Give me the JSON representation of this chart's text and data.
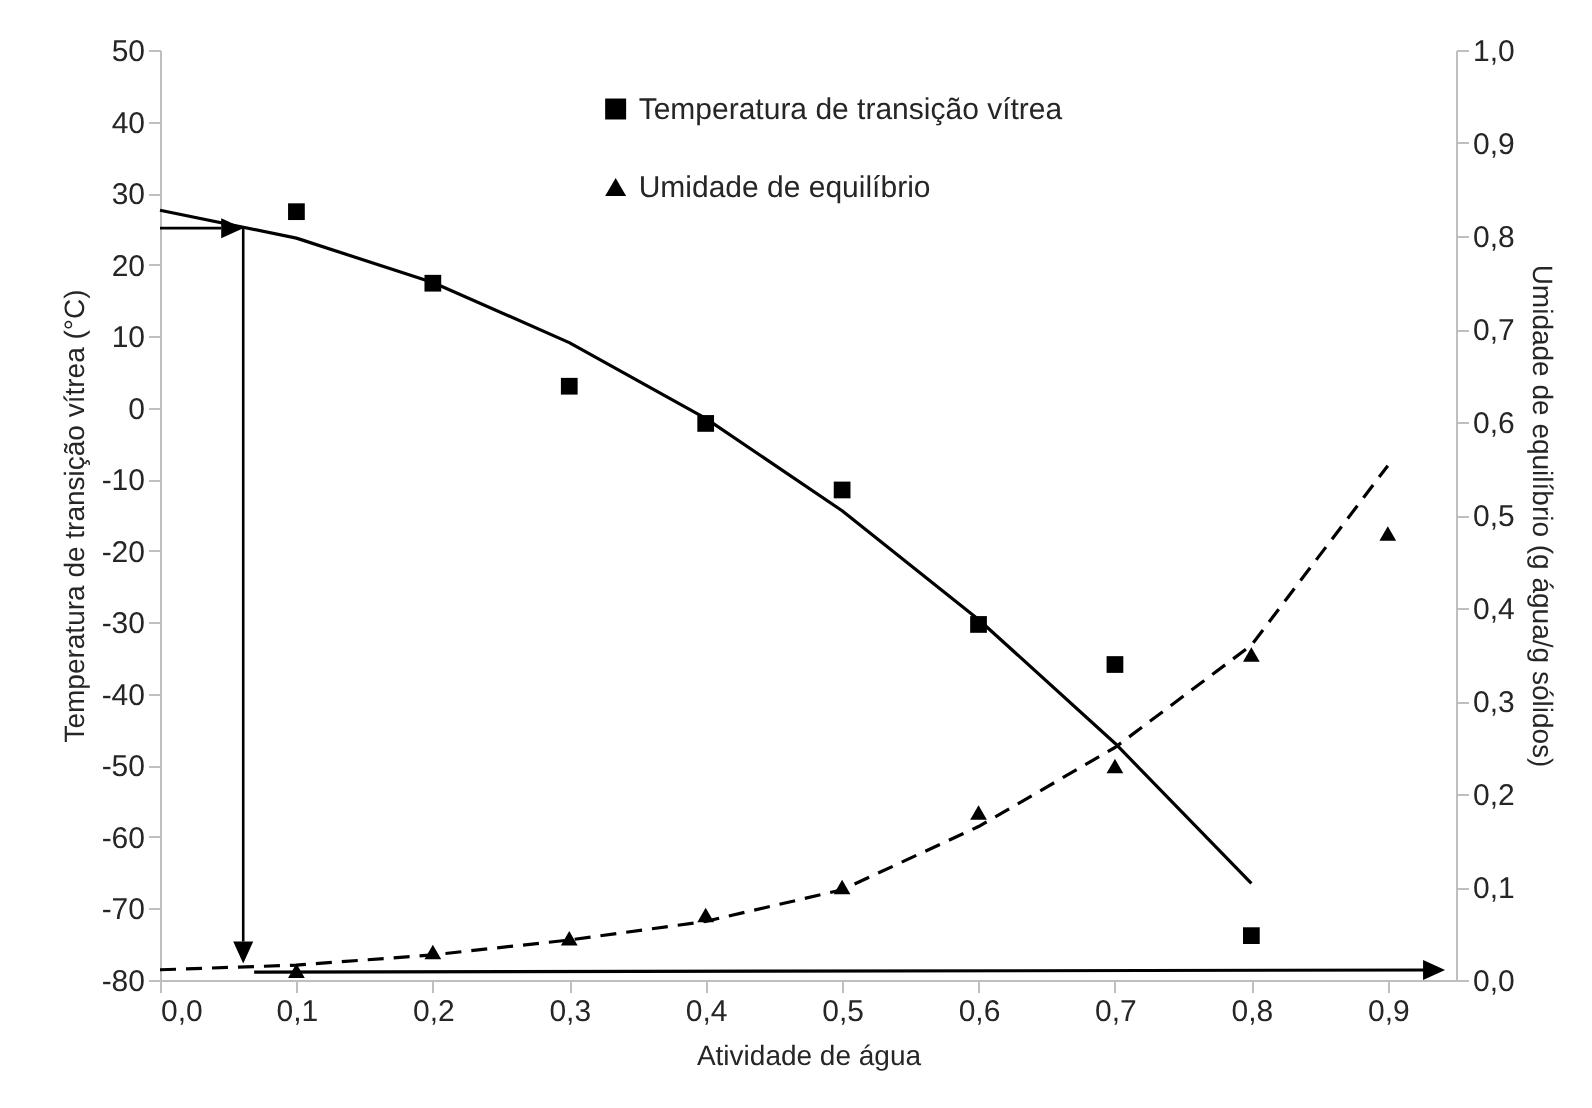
{
  "chart_data": {
    "type": "scatter",
    "xlabel": "Atividade de água",
    "ylabel": "Temperatura de transição vítrea (°C)",
    "y2label": "Umidade de equilíbrio (g água/g sólidos)",
    "xlim": [
      0,
      0.95
    ],
    "xticks": [
      {
        "value": 0,
        "label": "0,0"
      },
      {
        "value": 0.1,
        "label": "0,1"
      },
      {
        "value": 0.2,
        "label": "0,2"
      },
      {
        "value": 0.3,
        "label": "0,3"
      },
      {
        "value": 0.4,
        "label": "0,4"
      },
      {
        "value": 0.5,
        "label": "0,5"
      },
      {
        "value": 0.6,
        "label": "0,6"
      },
      {
        "value": 0.7,
        "label": "0,7"
      },
      {
        "value": 0.8,
        "label": "0,8"
      },
      {
        "value": 0.9,
        "label": "0,9"
      }
    ],
    "ylim": [
      -80,
      50
    ],
    "yticks": [
      -80,
      -70,
      -60,
      -50,
      -40,
      -30,
      -20,
      -10,
      0,
      10,
      20,
      30,
      40,
      50
    ],
    "y2lim": [
      0,
      1
    ],
    "y2ticks": [
      {
        "value": 0,
        "label": "0,0"
      },
      {
        "value": 0.1,
        "label": "0,1"
      },
      {
        "value": 0.2,
        "label": "0,2"
      },
      {
        "value": 0.3,
        "label": "0,3"
      },
      {
        "value": 0.4,
        "label": "0,4"
      },
      {
        "value": 0.5,
        "label": "0,5"
      },
      {
        "value": 0.6,
        "label": "0,6"
      },
      {
        "value": 0.7,
        "label": "0,7"
      },
      {
        "value": 0.8,
        "label": "0,8"
      },
      {
        "value": 0.9,
        "label": "0,9"
      },
      {
        "value": 1,
        "label": "1,0"
      }
    ],
    "legend": "top",
    "series": [
      {
        "name": "Temperatura de transição vítrea",
        "marker": "square",
        "color": "#000000",
        "x": [
          0.1,
          0.2,
          0.3,
          0.4,
          0.5,
          0.6,
          0.7,
          0.8
        ],
        "values": [
          27.4,
          17.4,
          3,
          -2.2,
          -11.5,
          -30.3,
          -35.9,
          -73.8
        ]
      },
      {
        "type": "line",
        "color": "#000000",
        "line_style": "solid",
        "x": [
          0,
          0.1,
          0.2,
          0.3,
          0.4,
          0.5,
          0.6,
          0.7,
          0.8
        ],
        "values": [
          27.6,
          23.7,
          17.5,
          9.1,
          -1.5,
          -14.4,
          -29.6,
          -46.9,
          -66.5
        ]
      },
      {
        "name": "Umidade de equilíbrio",
        "marker": "triangle",
        "axis": "y2",
        "color": "#000000",
        "x": [
          0.1,
          0.2,
          0.3,
          0.4,
          0.5,
          0.6,
          0.7,
          0.8,
          0.9
        ],
        "values": [
          0.01,
          0.03,
          0.045,
          0.07,
          0.1,
          0.18,
          0.23,
          0.35,
          0.48
        ]
      },
      {
        "type": "line",
        "axis": "y2",
        "color": "#000000",
        "line_style": "dashed",
        "x": [
          0,
          0.1,
          0.2,
          0.3,
          0.4,
          0.5,
          0.6,
          0.7,
          0.8,
          0.9
        ],
        "values": [
          0.011,
          0.016,
          0.027,
          0.043,
          0.063,
          0.097,
          0.165,
          0.25,
          0.36,
          0.553
        ]
      },
      {
        "type": "line",
        "color": "#000000",
        "line_style": "solid",
        "x": [
          0.069,
          0.93
        ],
        "values": [
          -78.9,
          -78.6
        ]
      }
    ]
  }
}
